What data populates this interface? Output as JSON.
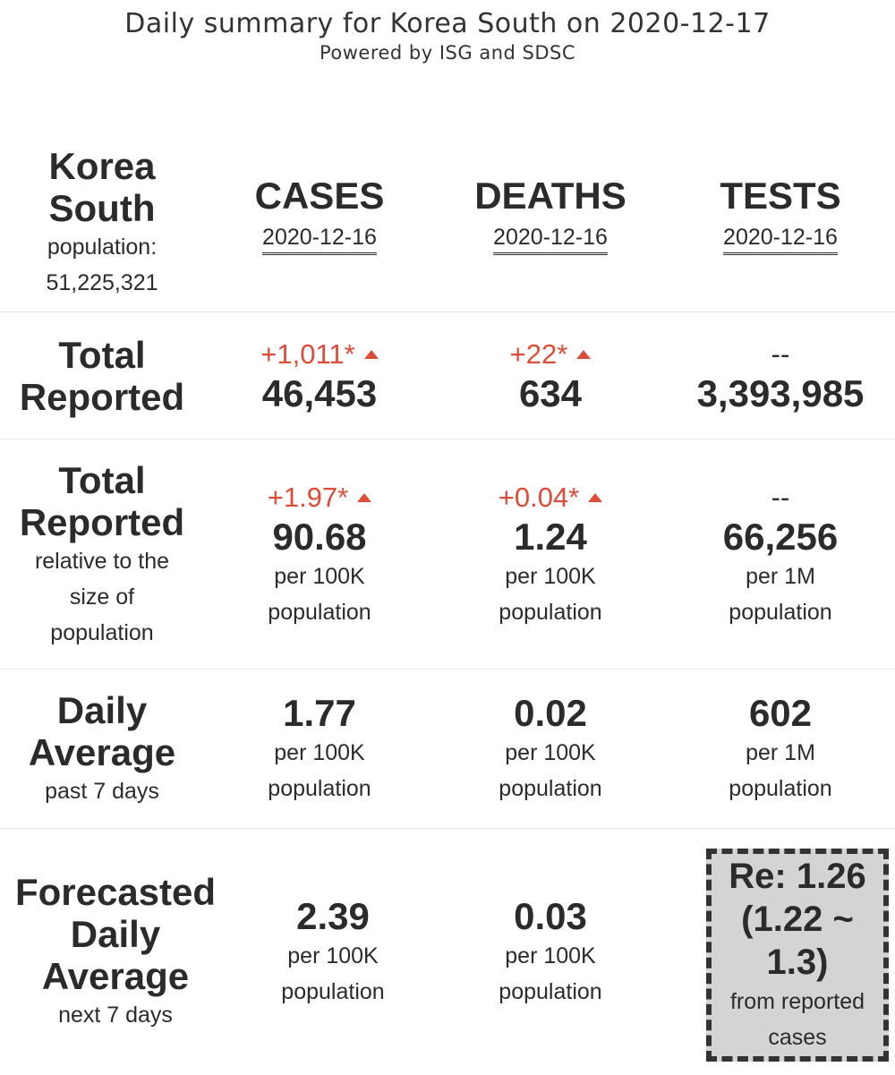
{
  "header": {
    "title": "Daily summary for Korea South on 2020-12-17",
    "subtitle": "Powered by ISG and SDSC"
  },
  "country": {
    "name_line1": "Korea",
    "name_line2": "South",
    "population_label": "population:",
    "population_value": "51,225,321"
  },
  "columns": [
    {
      "head": "CASES",
      "date": "2020-12-16"
    },
    {
      "head": "DEATHS",
      "date": "2020-12-16"
    },
    {
      "head": "TESTS",
      "date": "2020-12-16"
    }
  ],
  "rows": {
    "total_reported": {
      "label_line1": "Total",
      "label_line2": "Reported",
      "cases": {
        "delta": "+1,011*",
        "value": "46,453"
      },
      "deaths": {
        "delta": "+22*",
        "value": "634"
      },
      "tests": {
        "delta": "--",
        "value": "3,393,985"
      }
    },
    "relative": {
      "label_line1": "Total",
      "label_line2": "Reported",
      "sub_line1": "relative to the",
      "sub_line2": "size of",
      "sub_line3": "population",
      "cases": {
        "delta": "+1.97*",
        "value": "90.68",
        "unit1": "per 100K",
        "unit2": "population"
      },
      "deaths": {
        "delta": "+0.04*",
        "value": "1.24",
        "unit1": "per 100K",
        "unit2": "population"
      },
      "tests": {
        "delta": "--",
        "value": "66,256",
        "unit1": "per 1M",
        "unit2": "population"
      }
    },
    "daily_avg": {
      "label_line1": "Daily",
      "label_line2": "Average",
      "sub": "past 7 days",
      "cases": {
        "value": "1.77",
        "unit1": "per 100K",
        "unit2": "population"
      },
      "deaths": {
        "value": "0.02",
        "unit1": "per 100K",
        "unit2": "population"
      },
      "tests": {
        "value": "602",
        "unit1": "per 1M",
        "unit2": "population"
      }
    },
    "forecast": {
      "label_line1": "Forecasted",
      "label_line2": "Daily",
      "label_line3": "Average",
      "sub": "next 7 days",
      "cases": {
        "value": "2.39",
        "unit1": "per 100K",
        "unit2": "population"
      },
      "deaths": {
        "value": "0.03",
        "unit1": "per 100K",
        "unit2": "population"
      },
      "re": {
        "line1": "Re: 1.26",
        "line2": "(1.22 ~",
        "line3": "1.3)",
        "sub1": "from reported",
        "sub2": "cases"
      }
    }
  },
  "colors": {
    "increase": "#dd4b39",
    "text": "#2b2b2b",
    "re_box_bg": "#d4d4d4"
  },
  "icons": {
    "increase": "triangle-up-icon"
  }
}
